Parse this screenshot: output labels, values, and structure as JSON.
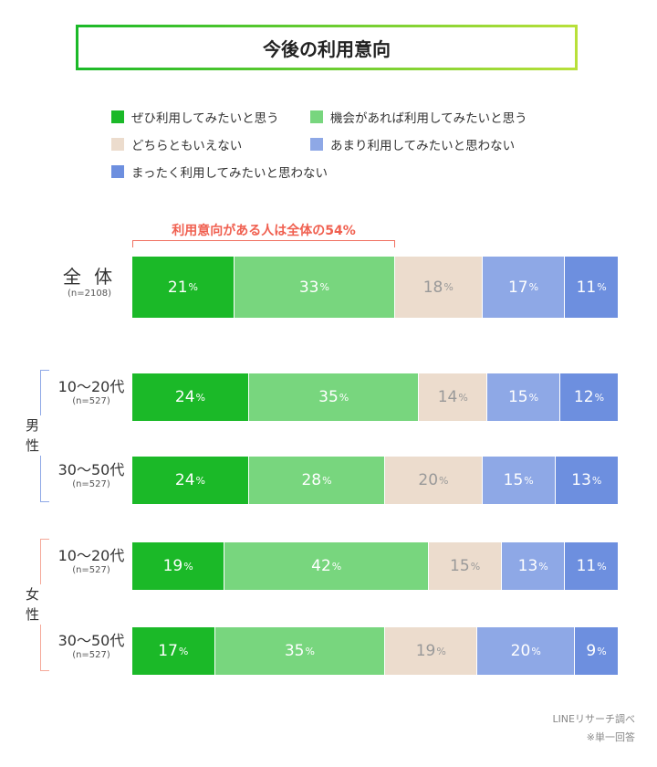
{
  "title": "今後の利用意向",
  "note": "利用意向がある人は全体の54%",
  "source": "LINEリサーチ調べ",
  "footnote": "※単一回答",
  "groups": {
    "male": "男性",
    "female": "女性"
  },
  "chart_data": {
    "type": "bar",
    "orientation": "horizontal",
    "stacked": true,
    "unit": "%",
    "categories": [
      {
        "label": "全 体",
        "n": "(n=2108)"
      },
      {
        "label": "10〜20代",
        "n": "(n=527)"
      },
      {
        "label": "30〜50代",
        "n": "(n=527)"
      },
      {
        "label": "10〜20代",
        "n": "(n=527)"
      },
      {
        "label": "30〜50代",
        "n": "(n=527)"
      }
    ],
    "series": [
      {
        "name": "ぜひ利用してみたいと思う",
        "color": "#1bb928",
        "values": [
          21,
          24,
          24,
          19,
          17
        ]
      },
      {
        "name": "機会があれば利用してみたいと思う",
        "color": "#78d67e",
        "values": [
          33,
          35,
          28,
          42,
          35
        ]
      },
      {
        "name": "どちらともいえない",
        "color": "#ecdccd",
        "values": [
          18,
          14,
          20,
          15,
          19
        ]
      },
      {
        "name": "あまり利用してみたいと思わない",
        "color": "#8ea8e6",
        "values": [
          17,
          15,
          15,
          13,
          20
        ]
      },
      {
        "name": "まったく利用してみたいと思わない",
        "color": "#6d8fdf",
        "values": [
          11,
          12,
          13,
          11,
          9
        ]
      }
    ]
  }
}
